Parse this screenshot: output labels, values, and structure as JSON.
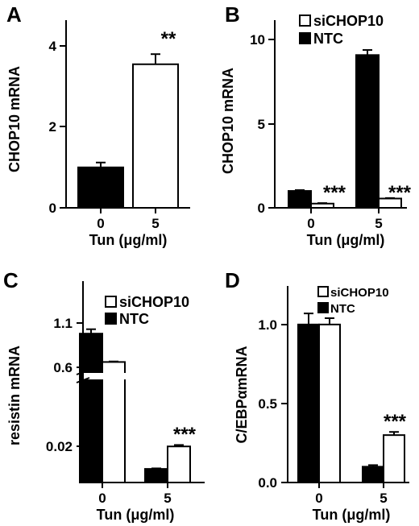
{
  "chart_data": [
    {
      "panel": "A",
      "type": "bar",
      "xlabel": "Tun (μg/ml)",
      "ylabel": "CHOP10 mRNA",
      "categories": [
        "0",
        "5"
      ],
      "ylim": [
        0,
        4.8
      ],
      "yticks": [
        "0",
        "2",
        "4"
      ],
      "series": [
        {
          "values": [
            1.0,
            3.55
          ],
          "errors": [
            0.12,
            0.25
          ],
          "fills": [
            "#000000",
            "#ffffff"
          ]
        }
      ],
      "annotations": [
        {
          "category": "5",
          "text": "**"
        }
      ]
    },
    {
      "panel": "B",
      "type": "bar",
      "xlabel": "Tun (μg/ml)",
      "ylabel": "CHOP10 mRNA",
      "categories": [
        "0",
        "5"
      ],
      "ylim": [
        0,
        11.5
      ],
      "yticks": [
        "0",
        "5",
        "10"
      ],
      "legend": [
        "siCHOP10",
        "NTC"
      ],
      "series": [
        {
          "name": "NTC",
          "values": [
            1.0,
            9.05
          ],
          "errors": [
            0.05,
            0.3
          ],
          "fill": "#000000"
        },
        {
          "name": "siCHOP10",
          "values": [
            0.25,
            0.55
          ],
          "errors": [
            0.03,
            0.03
          ],
          "fill": "#ffffff"
        }
      ],
      "annotations": [
        {
          "category": "0",
          "text": "***"
        },
        {
          "category": "5",
          "text": "***"
        }
      ]
    },
    {
      "panel": "C",
      "type": "bar",
      "xlabel": "Tun (μg/ml)",
      "ylabel": "resistin mRNA",
      "categories": [
        "0",
        "5"
      ],
      "broken_axis": true,
      "ylim_upper": [
        0.45,
        1.37
      ],
      "ylim_lower": [
        0,
        0.036
      ],
      "yticks": [
        "0.02",
        "0.6",
        "1.1"
      ],
      "legend": [
        "siCHOP10",
        "NTC"
      ],
      "series": [
        {
          "name": "NTC",
          "values": [
            0.98,
            0.0075
          ],
          "errors": [
            0.05,
            0.0003
          ],
          "fill": "#000000"
        },
        {
          "name": "siCHOP10",
          "values": [
            0.66,
            0.0199
          ],
          "errors": [
            0.006,
            0.0008
          ],
          "fill": "#ffffff"
        }
      ],
      "annotations": [
        {
          "category": "5",
          "text": "***"
        }
      ]
    },
    {
      "panel": "D",
      "type": "bar",
      "xlabel": "Tun (μg/ml)",
      "ylabel": "C/EBPαmRNA",
      "categories": [
        "0",
        "5"
      ],
      "ylim": [
        0,
        1.3
      ],
      "yticks": [
        "0.0",
        "0.5",
        "1.0"
      ],
      "legend": [
        "siCHOP10",
        "NTC"
      ],
      "series": [
        {
          "name": "NTC",
          "values": [
            1.0,
            0.1
          ],
          "errors": [
            0.07,
            0.01
          ],
          "fill": "#000000"
        },
        {
          "name": "siCHOP10",
          "values": [
            1.0,
            0.3
          ],
          "errors": [
            0.04,
            0.02
          ],
          "fill": "#ffffff"
        }
      ],
      "annotations": [
        {
          "category": "5",
          "text": "***"
        }
      ]
    }
  ]
}
